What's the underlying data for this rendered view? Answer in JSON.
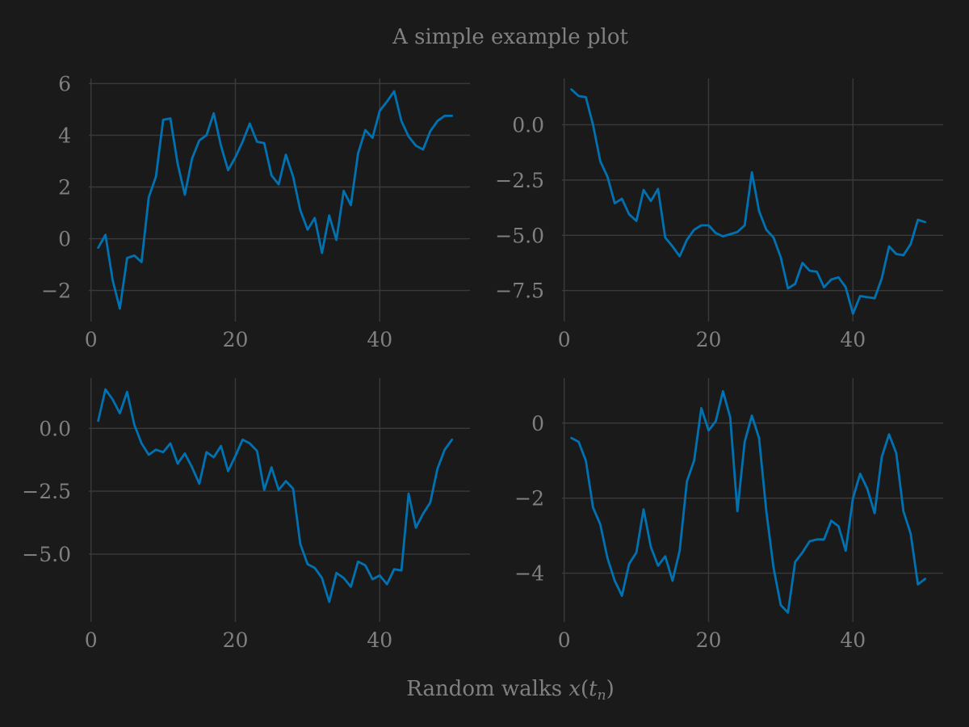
{
  "figure": {
    "title": "A simple example plot",
    "xlabel": "Random walks x(tₙ)",
    "xlabel_prefix": "Random walks ",
    "xlabel_var": "x",
    "xlabel_open": "(",
    "xlabel_t": "t",
    "xlabel_sub": "n",
    "xlabel_close": ")",
    "background_color": "#1a1a1a",
    "text_color": "#808080",
    "grid_color": "#3a3a3a",
    "line_color": "#0072b2"
  },
  "chart_data": [
    {
      "type": "line",
      "grid": true,
      "xlim": [
        -0.3,
        52.5
      ],
      "ylim": [
        -3.2,
        6.2
      ],
      "xticks": [
        0,
        20,
        40
      ],
      "xtick_labels": [
        "0",
        "20",
        "40"
      ],
      "yticks": [
        -2,
        0,
        2,
        4,
        6
      ],
      "ytick_labels": [
        "−2",
        "0",
        "2",
        "4",
        "6"
      ],
      "x": [
        1,
        2,
        3,
        4,
        5,
        6,
        7,
        8,
        9,
        10,
        11,
        12,
        13,
        14,
        15,
        16,
        17,
        18,
        19,
        20,
        21,
        22,
        23,
        24,
        25,
        26,
        27,
        28,
        29,
        30,
        31,
        32,
        33,
        34,
        35,
        36,
        37,
        38,
        39,
        40,
        41,
        42,
        43,
        44,
        45,
        46,
        47,
        48,
        49,
        50
      ],
      "series": [
        {
          "values": [
            -0.35,
            0.15,
            -1.6,
            -2.7,
            -0.75,
            -0.65,
            -0.9,
            1.6,
            2.4,
            4.6,
            4.65,
            2.9,
            1.7,
            3.1,
            3.8,
            4.0,
            4.85,
            3.6,
            2.65,
            3.15,
            3.75,
            4.45,
            3.75,
            3.7,
            2.45,
            2.1,
            3.25,
            2.4,
            1.1,
            0.35,
            0.8,
            -0.55,
            0.9,
            -0.05,
            1.85,
            1.3,
            3.3,
            4.2,
            3.9,
            4.95,
            5.3,
            5.7,
            4.55,
            3.95,
            3.6,
            3.45,
            4.15,
            4.55,
            4.75,
            4.75
          ]
        }
      ]
    },
    {
      "type": "line",
      "grid": true,
      "xlim": [
        -0.3,
        52.5
      ],
      "ylim": [
        -8.9,
        2.1
      ],
      "xticks": [
        0,
        20,
        40
      ],
      "xtick_labels": [
        "0",
        "20",
        "40"
      ],
      "yticks": [
        -7.5,
        -5.0,
        -2.5,
        0.0
      ],
      "ytick_labels": [
        "−7.5",
        "−5.0",
        "−2.5",
        "0.0"
      ],
      "x": [
        1,
        2,
        3,
        4,
        5,
        6,
        7,
        8,
        9,
        10,
        11,
        12,
        13,
        14,
        15,
        16,
        17,
        18,
        19,
        20,
        21,
        22,
        23,
        24,
        25,
        26,
        27,
        28,
        29,
        30,
        31,
        32,
        33,
        34,
        35,
        36,
        37,
        38,
        39,
        40,
        41,
        42,
        43,
        44,
        45,
        46,
        47,
        48,
        49,
        50
      ],
      "series": [
        {
          "values": [
            1.6,
            1.3,
            1.25,
            0.0,
            -1.65,
            -2.35,
            -3.55,
            -3.35,
            -4.05,
            -4.35,
            -2.95,
            -3.45,
            -2.9,
            -5.1,
            -5.5,
            -5.95,
            -5.2,
            -4.75,
            -4.55,
            -4.55,
            -4.9,
            -5.05,
            -4.95,
            -4.85,
            -4.55,
            -2.15,
            -3.9,
            -4.75,
            -5.1,
            -6.0,
            -7.4,
            -7.2,
            -6.25,
            -6.6,
            -6.65,
            -7.35,
            -7.0,
            -6.9,
            -7.35,
            -8.55,
            -7.75,
            -7.8,
            -7.85,
            -6.95,
            -5.5,
            -5.85,
            -5.9,
            -5.4,
            -4.3,
            -4.4
          ]
        }
      ]
    },
    {
      "type": "line",
      "grid": true,
      "xlim": [
        -0.3,
        52.5
      ],
      "ylim": [
        -7.7,
        2.0
      ],
      "xticks": [
        0,
        20,
        40
      ],
      "xtick_labels": [
        "0",
        "20",
        "40"
      ],
      "yticks": [
        -5.0,
        -2.5,
        0.0
      ],
      "ytick_labels": [
        "−5.0",
        "−2.5",
        "0.0"
      ],
      "x": [
        1,
        2,
        3,
        4,
        5,
        6,
        7,
        8,
        9,
        10,
        11,
        12,
        13,
        14,
        15,
        16,
        17,
        18,
        19,
        20,
        21,
        22,
        23,
        24,
        25,
        26,
        27,
        28,
        29,
        30,
        31,
        32,
        33,
        34,
        35,
        36,
        37,
        38,
        39,
        40,
        41,
        42,
        43,
        44,
        45,
        46,
        47,
        48,
        49,
        50
      ],
      "series": [
        {
          "values": [
            0.3,
            1.55,
            1.15,
            0.6,
            1.45,
            0.15,
            -0.6,
            -1.05,
            -0.85,
            -0.95,
            -0.6,
            -1.4,
            -1.0,
            -1.55,
            -2.2,
            -0.95,
            -1.15,
            -0.7,
            -1.7,
            -1.1,
            -0.45,
            -0.6,
            -0.9,
            -2.45,
            -1.55,
            -2.45,
            -2.1,
            -2.4,
            -4.6,
            -5.4,
            -5.55,
            -5.95,
            -6.9,
            -5.75,
            -5.95,
            -6.3,
            -5.3,
            -5.45,
            -6.0,
            -5.85,
            -6.2,
            -5.6,
            -5.65,
            -2.6,
            -3.95,
            -3.4,
            -2.95,
            -1.6,
            -0.85,
            -0.45
          ]
        }
      ]
    },
    {
      "type": "line",
      "grid": true,
      "xlim": [
        -0.3,
        52.5
      ],
      "ylim": [
        -5.3,
        1.2
      ],
      "xticks": [
        0,
        20,
        40
      ],
      "xtick_labels": [
        "0",
        "20",
        "40"
      ],
      "yticks": [
        -4,
        -2,
        0
      ],
      "ytick_labels": [
        "−4",
        "−2",
        "0"
      ],
      "x": [
        1,
        2,
        3,
        4,
        5,
        6,
        7,
        8,
        9,
        10,
        11,
        12,
        13,
        14,
        15,
        16,
        17,
        18,
        19,
        20,
        21,
        22,
        23,
        24,
        25,
        26,
        27,
        28,
        29,
        30,
        31,
        32,
        33,
        34,
        35,
        36,
        37,
        38,
        39,
        40,
        41,
        42,
        43,
        44,
        45,
        46,
        47,
        48,
        49,
        50
      ],
      "series": [
        {
          "values": [
            -0.4,
            -0.5,
            -1.0,
            -2.25,
            -2.7,
            -3.6,
            -4.2,
            -4.6,
            -3.75,
            -3.45,
            -2.3,
            -3.3,
            -3.8,
            -3.55,
            -4.2,
            -3.4,
            -1.55,
            -1.0,
            0.4,
            -0.2,
            0.05,
            0.85,
            0.15,
            -2.35,
            -0.5,
            0.2,
            -0.4,
            -2.35,
            -3.85,
            -4.85,
            -5.05,
            -3.7,
            -3.45,
            -3.15,
            -3.1,
            -3.1,
            -2.6,
            -2.75,
            -3.4,
            -2.0,
            -1.35,
            -1.75,
            -2.4,
            -0.9,
            -0.3,
            -0.8,
            -2.35,
            -2.95,
            -4.3,
            -4.15
          ]
        }
      ]
    }
  ]
}
